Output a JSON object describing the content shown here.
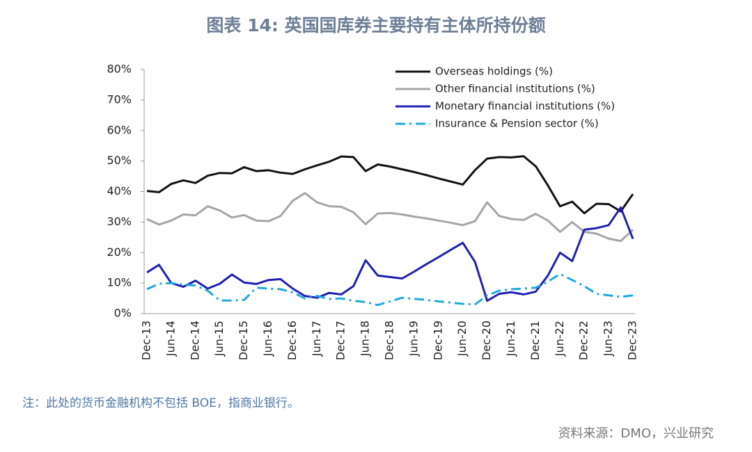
{
  "chart_data": {
    "type": "line",
    "title": "图表 14: 英国国库券主要持有主体所持份额",
    "note": "注：此处的货币金融机构不包括 BOE，指商业银行。",
    "source": "资料来源：DMO，兴业研究",
    "categories": [
      "Dec-13",
      null,
      "Jun-14",
      null,
      "Dec-14",
      null,
      "Jun-15",
      null,
      "Dec-15",
      null,
      "Jun-16",
      null,
      "Dec-16",
      null,
      "Jun-17",
      null,
      "Dec-17",
      null,
      "Jun-18",
      null,
      "Dec-18",
      null,
      "Jun-19",
      null,
      "Dec-19",
      null,
      "Jun-20",
      null,
      "Dec-20",
      null,
      "Jun-21",
      null,
      "Dec-21",
      null,
      "Jun-22",
      null,
      "Dec-22",
      null,
      "Jun-23",
      null,
      "Dec-23"
    ],
    "series": [
      {
        "name": "Overseas holdings (%)",
        "color": "#111111",
        "dash": "solid",
        "values": [
          40.2,
          39.8,
          42.5,
          43.7,
          42.8,
          45.2,
          46.1,
          46.0,
          48.0,
          46.7,
          47.0,
          46.2,
          45.8,
          47.3,
          48.6,
          49.8,
          51.5,
          51.3,
          46.7,
          48.9,
          48.2,
          47.3,
          46.4,
          45.4,
          44.3,
          43.3,
          42.3,
          47.0,
          50.8,
          51.3,
          51.2,
          51.6,
          48.3,
          42.0,
          35.2,
          36.7,
          32.9,
          36.0,
          35.9,
          33.5,
          39.2
        ]
      },
      {
        "name": "Other financial institutions (%)",
        "color": "#a6a6a6",
        "dash": "solid",
        "values": [
          31.0,
          29.2,
          30.5,
          32.5,
          32.2,
          35.2,
          33.8,
          31.5,
          32.3,
          30.5,
          30.3,
          32.0,
          37.0,
          39.5,
          36.5,
          35.2,
          35.0,
          33.2,
          29.3,
          32.8,
          33.0,
          32.5,
          31.8,
          31.2,
          30.5,
          29.8,
          29.0,
          30.3,
          36.5,
          32.0,
          31.0,
          30.7,
          32.7,
          30.5,
          26.8,
          30.0,
          26.8,
          26.2,
          24.6,
          23.8,
          27.5
        ]
      },
      {
        "name": "Monetary financial institutions (%)",
        "color": "#1f1fb4",
        "dash": "solid",
        "values": [
          13.5,
          16.0,
          10.0,
          8.8,
          10.8,
          8.2,
          9.8,
          12.8,
          10.2,
          9.7,
          11.0,
          11.3,
          8.2,
          5.8,
          5.2,
          6.8,
          6.3,
          9.0,
          17.5,
          12.5,
          12.0,
          11.5,
          13.8,
          16.2,
          18.5,
          20.9,
          23.2,
          17.0,
          4.2,
          6.5,
          7.0,
          6.3,
          7.2,
          12.5,
          20.0,
          17.2,
          27.5,
          28.0,
          29.0,
          34.8,
          24.5
        ]
      },
      {
        "name": "Insurance & Pension sector (%)",
        "color": "#1fa8e0",
        "dash": "dashdot",
        "values": [
          8.0,
          9.8,
          10.0,
          9.5,
          9.2,
          7.5,
          4.3,
          4.3,
          4.5,
          8.5,
          8.2,
          8.0,
          7.0,
          5.0,
          5.8,
          4.8,
          5.0,
          4.2,
          3.8,
          2.8,
          4.0,
          5.2,
          4.8,
          4.5,
          4.0,
          3.6,
          3.2,
          3.0,
          6.0,
          7.5,
          8.0,
          8.2,
          8.5,
          10.5,
          13.0,
          11.0,
          9.0,
          6.5,
          6.0,
          5.5,
          6.0
        ]
      }
    ],
    "ylim": [
      0,
      80
    ],
    "yticks": [
      {
        "value": 0,
        "label": "0%"
      },
      {
        "value": 10,
        "label": "10%"
      },
      {
        "value": 20,
        "label": "20%"
      },
      {
        "value": 30,
        "label": "30%"
      },
      {
        "value": 40,
        "label": "40%"
      },
      {
        "value": 50,
        "label": "50%"
      },
      {
        "value": 60,
        "label": "60%"
      },
      {
        "value": 70,
        "label": "70%"
      },
      {
        "value": 80,
        "label": "80%"
      }
    ],
    "grid": false,
    "legend": "upper right"
  }
}
